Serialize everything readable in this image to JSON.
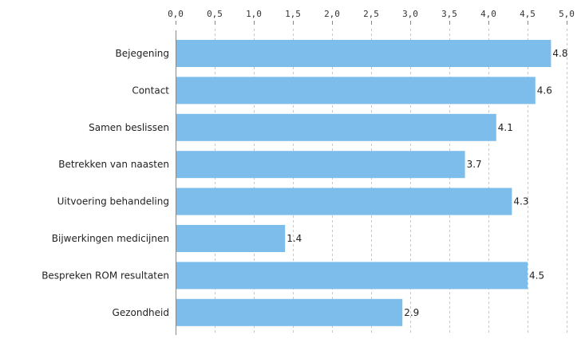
{
  "chart_data": {
    "type": "bar",
    "orientation": "horizontal",
    "categories": [
      "Bejegening",
      "Contact",
      "Samen beslissen",
      "Betrekken van naasten",
      "Uitvoering behandeling",
      "Bijwerkingen medicijnen",
      "Bespreken ROM resultaten",
      "Gezondheid"
    ],
    "values": [
      4.8,
      4.6,
      4.1,
      3.7,
      4.3,
      1.4,
      4.5,
      2.9
    ],
    "value_labels": [
      "4.8",
      "4.6",
      "4.1",
      "3.7",
      "4.3",
      "1.4",
      "4.5",
      "2.9"
    ],
    "xlim": [
      0,
      5
    ],
    "xticks": [
      0,
      0.5,
      1,
      1.5,
      2,
      2.5,
      3,
      3.5,
      4,
      4.5,
      5
    ],
    "xtick_labels": [
      "0,0",
      "0,5",
      "1,0",
      "1,5",
      "2,0",
      "2,5",
      "3,0",
      "3,5",
      "4,0",
      "4,5",
      "5,0"
    ],
    "x_axis_position": "top",
    "grid": true,
    "bar_color": "#7cbdeb",
    "title": "",
    "xlabel": "",
    "ylabel": ""
  }
}
